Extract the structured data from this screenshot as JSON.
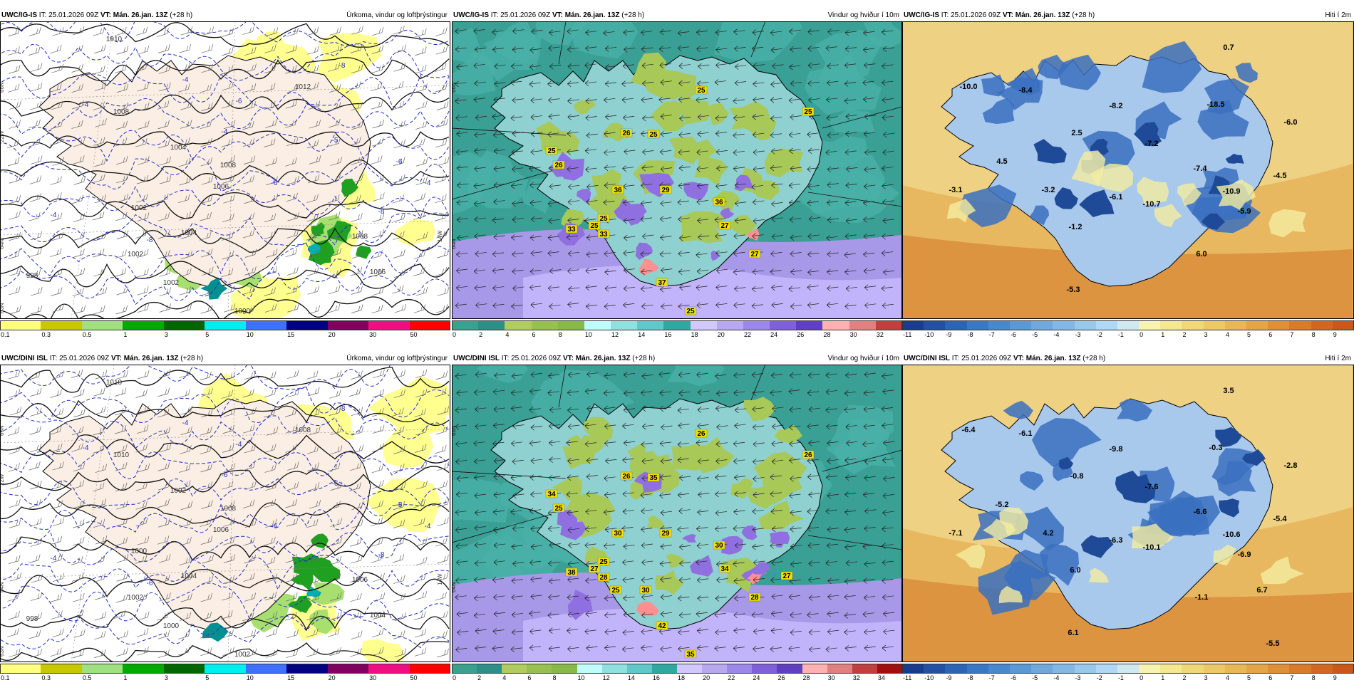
{
  "rows": [
    {
      "panels": [
        {
          "kind": "precip",
          "model": "UWC/IG-IS",
          "it": "IT: 25.01.2026 09Z",
          "vt_label": "VT:",
          "vt": "Mán. 26.jan. 13Z",
          "lead": "(+28 h)",
          "field": "Úrkoma, vindur og loftþrýstingur",
          "contours": [
            "1010",
            "1008",
            "1008",
            "1006",
            "1004",
            "1002",
            "1002",
            "998",
            "1012",
            "1008",
            "1006",
            "1004",
            "1002",
            "1000"
          ],
          "dashes": [
            "-4",
            "-8",
            "-4",
            "-6",
            "-6",
            "-8",
            "-4",
            "-8",
            "-6",
            "-5",
            "-4",
            "-4"
          ],
          "lat": [
            "66N",
            "64N",
            "63N",
            "14W",
            "22W"
          ]
        },
        {
          "kind": "wind",
          "model": "UWC/IG-IS",
          "it": "IT: 25.01.2026 09Z",
          "vt_label": "VT:",
          "vt": "Mán. 26.jan. 13Z",
          "lead": "(+28 h)",
          "field": "Vindur og hviður í 10m",
          "labels": [
            "25",
            "25",
            "26",
            "25",
            "25",
            "26",
            "36",
            "29",
            "36",
            "27",
            "27",
            "33",
            "25",
            "33",
            "37",
            "25",
            "25"
          ],
          "lat": [
            "66N",
            "64N"
          ]
        },
        {
          "kind": "temp",
          "model": "UWC/IG-IS",
          "it": "IT: 25.01.2026 09Z",
          "vt_label": "VT:",
          "vt": "Mán. 26.jan. 13Z",
          "lead": "(+28 h)",
          "field": "Hiti í 2m",
          "labels": [
            "0.7",
            "-10.0",
            "-8.4",
            "-8.2",
            "-18.5",
            "-6.0",
            "2.5",
            "-7.2",
            "4.5",
            "-7.4",
            "-4.5",
            "-3.1",
            "-3.2",
            "-6.1",
            "-10.7",
            "-10.9",
            "-5.9",
            "-1.2",
            "6.0",
            "-5.3"
          ]
        }
      ]
    },
    {
      "panels": [
        {
          "kind": "precip",
          "model": "UWC/DINI ISL",
          "it": "IT: 25.01.2026 09Z",
          "vt_label": "VT:",
          "vt": "Mán. 26.jan. 13Z",
          "lead": "(+28 h)",
          "field": "Úrkoma, vindur og loftþrýstingur",
          "contours": [
            "1010",
            "1010",
            "1008",
            "1006",
            "1004",
            "1002",
            "1000",
            "998",
            "1008",
            "1006",
            "1004",
            "1002",
            "1000",
            "1002"
          ],
          "dashes": [
            "-4",
            "-8",
            "-6",
            "-4",
            "-6",
            "-8",
            "-4",
            "-6",
            "-5",
            "-6",
            "-4",
            "-4"
          ],
          "lat": [
            "66N",
            "64N",
            "63N",
            "14W",
            "22W"
          ]
        },
        {
          "kind": "wind",
          "model": "UWC/DINI ISL",
          "it": "IT: 25.01.2026 09Z",
          "vt_label": "VT:",
          "vt": "Mán. 26.jan. 13Z",
          "lead": "(+28 h)",
          "field": "Vindur og hviður í 10m",
          "labels": [
            "26",
            "26",
            "26",
            "35",
            "34",
            "25",
            "30",
            "29",
            "30",
            "34",
            "28",
            "28",
            "25",
            "38",
            "42",
            "35",
            "27",
            "27",
            "30",
            "25"
          ],
          "lat": [
            "66N",
            "64N"
          ]
        },
        {
          "kind": "temp",
          "model": "UWC/DINI ISL",
          "it": "IT: 25.01.2026 09Z",
          "vt_label": "VT:",
          "vt": "Mán. 26.jan. 13Z",
          "lead": "(+28 h)",
          "field": "Hiti í 2m",
          "labels": [
            "3.5",
            "-6.4",
            "-6.1",
            "-9.8",
            "-0.3",
            "-2.8",
            "-0.8",
            "-7.6",
            "-5.2",
            "-6.6",
            "-5.4",
            "-7.1",
            "4.2",
            "-6.3",
            "-10.1",
            "-10.6",
            "-6.9",
            "6.0",
            "-1.1",
            "6.1",
            "6.7",
            "-5.5"
          ]
        }
      ]
    }
  ],
  "legends": {
    "precip": {
      "ticks": [
        "0.1",
        "0.3",
        "0.5",
        "1",
        "3",
        "5",
        "10",
        "15",
        "20",
        "30",
        "50"
      ],
      "colors": [
        "#ffff80",
        "#c8c800",
        "#a0e080",
        "#00aa00",
        "#006600",
        "#00eeee",
        "#4070ff",
        "#000080",
        "#800060",
        "#ee1080",
        "#ff0000"
      ]
    },
    "wind_top": {
      "ticks": [
        "0",
        "2",
        "4",
        "6",
        "8",
        "10",
        "12",
        "14",
        "16",
        "18",
        "20",
        "22",
        "24",
        "26",
        "28",
        "30",
        "32"
      ]
    },
    "wind_bottom": {
      "ticks": [
        "0",
        "2",
        "4",
        "6",
        "8",
        "10",
        "12",
        "14",
        "16",
        "18",
        "20",
        "22",
        "24",
        "26",
        "28",
        "30",
        "32",
        "34"
      ]
    },
    "wind_colors": [
      "#3aa090",
      "#2e8f86",
      "#b0cc60",
      "#98c050",
      "#88b848",
      "#bffcfc",
      "#90e0e0",
      "#60c8c8",
      "#30a8a0",
      "#d0c8ff",
      "#b8a8f0",
      "#9c88e8",
      "#8060d8",
      "#6040c0",
      "#ffb0b0",
      "#e08080",
      "#c04040",
      "#a01010",
      "#f0b000"
    ],
    "temp": {
      "ticks": [
        "-11",
        "-10",
        "-9",
        "-8",
        "-7",
        "-6",
        "-5",
        "-4",
        "-3",
        "-2",
        "-1",
        "0",
        "1",
        "2",
        "3",
        "4",
        "5",
        "6",
        "7",
        "8",
        "9"
      ],
      "colors": [
        "#1a3c8c",
        "#2350a0",
        "#2e64b4",
        "#3a78c4",
        "#4a88cc",
        "#5c98d4",
        "#70a8dc",
        "#84b8e4",
        "#98c8ec",
        "#b0d8f4",
        "#d0e8f0",
        "#f8f4b0",
        "#f4e890",
        "#f0d878",
        "#ecc868",
        "#e8b858",
        "#e4a448",
        "#de9038",
        "#d87c2c",
        "#d06824",
        "#c8581c"
      ]
    }
  }
}
